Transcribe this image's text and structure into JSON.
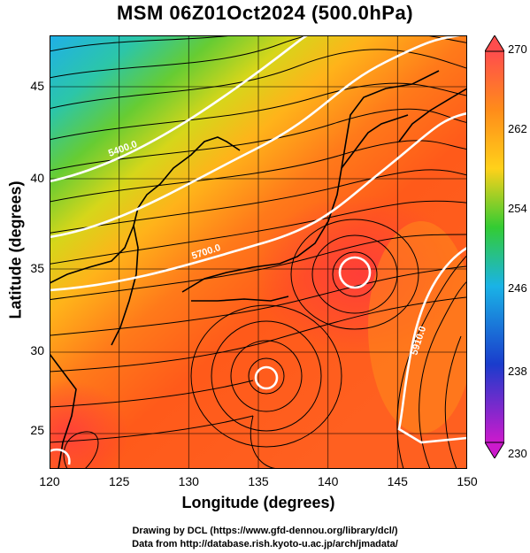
{
  "title": "MSM 06Z01Oct2024 (500.0hPa)",
  "x_axis": {
    "title": "Longitude (degrees)",
    "ticks": [
      "120",
      "125",
      "130",
      "135",
      "140",
      "145",
      "150"
    ],
    "range": [
      120,
      150
    ]
  },
  "y_axis": {
    "title": "Latitude  (degrees)",
    "ticks": [
      "25",
      "30",
      "35",
      "40",
      "45"
    ],
    "range": [
      22.5,
      47.6
    ]
  },
  "colorbar": {
    "labels": [
      "270",
      "262",
      "254",
      "246",
      "238",
      "230"
    ],
    "range": [
      230,
      270
    ],
    "colors": [
      "#ff4d4d",
      "#ff8c1a",
      "#ffd11a",
      "#33cc33",
      "#1ab3e6",
      "#1a3ccc",
      "#cc1acc"
    ]
  },
  "contours": {
    "labels": [
      "5400.0",
      "5700.0",
      "5910.0",
      "5910.0"
    ]
  },
  "credits": {
    "line1": "Drawing by DCL (https://www.gfd-dennou.org/library/dcl/)",
    "line2": "Data from http://database.rish.kyoto-u.ac.jp/arch/jmadata/"
  }
}
